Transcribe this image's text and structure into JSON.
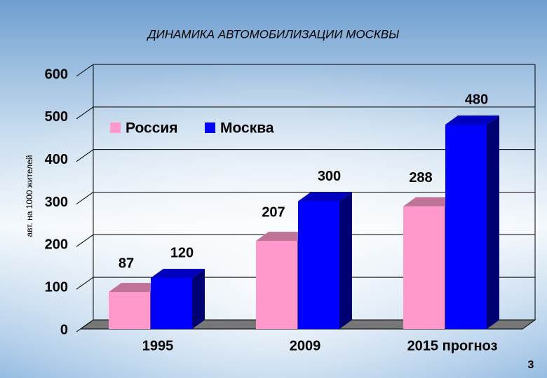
{
  "chart_data": {
    "type": "bar3d",
    "title": "ДИНАМИКА АВТОМОБИЛИЗАЦИИ МОСКВЫ",
    "y_label": "авт. на 1000 жителей",
    "categories": [
      "1995",
      "2009",
      "2015 прогноз"
    ],
    "series": [
      {
        "name": "Россия",
        "color": "#ff99cc",
        "values": [
          87,
          207,
          288
        ]
      },
      {
        "name": "Москва",
        "color": "#0000ff",
        "values": [
          120,
          300,
          480
        ]
      }
    ],
    "ylim": [
      0,
      600
    ],
    "yticks": [
      0,
      100,
      200,
      300,
      400,
      500,
      600
    ],
    "grid": true,
    "page_number": "3"
  }
}
